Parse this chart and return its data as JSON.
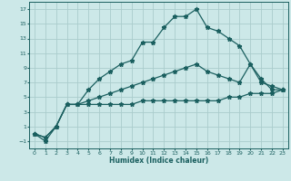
{
  "xlabel": "Humidex (Indice chaleur)",
  "background_color": "#cce8e8",
  "grid_color": "#aacccc",
  "line_color": "#1a5f5f",
  "xlim": [
    -0.5,
    23.5
  ],
  "ylim": [
    -2,
    18
  ],
  "xticks": [
    0,
    1,
    2,
    3,
    4,
    5,
    6,
    7,
    8,
    9,
    10,
    11,
    12,
    13,
    14,
    15,
    16,
    17,
    18,
    19,
    20,
    21,
    22,
    23
  ],
  "yticks": [
    -1,
    1,
    3,
    5,
    7,
    9,
    11,
    13,
    15,
    17
  ],
  "line1_x": [
    0,
    1,
    2,
    3,
    4,
    5,
    6,
    7,
    8,
    9,
    10,
    11,
    12,
    13,
    14,
    15,
    16,
    17,
    18,
    19,
    20,
    21,
    22,
    23
  ],
  "line1_y": [
    0,
    -1,
    1,
    4,
    4,
    6,
    7.5,
    8.5,
    9.5,
    10,
    12.5,
    12.5,
    14.5,
    16,
    16,
    17,
    14.5,
    14,
    13,
    12,
    9.5,
    7.5,
    6,
    6
  ],
  "line2_x": [
    0,
    1,
    2,
    3,
    4,
    5,
    6,
    7,
    8,
    9,
    10,
    11,
    12,
    13,
    14,
    15,
    16,
    17,
    18,
    19,
    20,
    21,
    22,
    23
  ],
  "line2_y": [
    0,
    -0.5,
    1,
    4,
    4,
    4,
    4,
    4,
    4,
    4,
    4.5,
    4.5,
    4.5,
    4.5,
    4.5,
    4.5,
    4.5,
    4.5,
    5,
    5,
    5.5,
    5.5,
    5.5,
    6
  ],
  "line3_x": [
    0,
    1,
    2,
    3,
    4,
    5,
    6,
    7,
    8,
    9,
    10,
    11,
    12,
    13,
    14,
    15,
    16,
    17,
    18,
    19,
    20,
    21,
    22,
    23
  ],
  "line3_y": [
    0,
    -0.5,
    1,
    4,
    4,
    4.5,
    5,
    5.5,
    6,
    6.5,
    7,
    7.5,
    8,
    8.5,
    9,
    9.5,
    8.5,
    8,
    7.5,
    7,
    9.5,
    7,
    6.5,
    6
  ]
}
